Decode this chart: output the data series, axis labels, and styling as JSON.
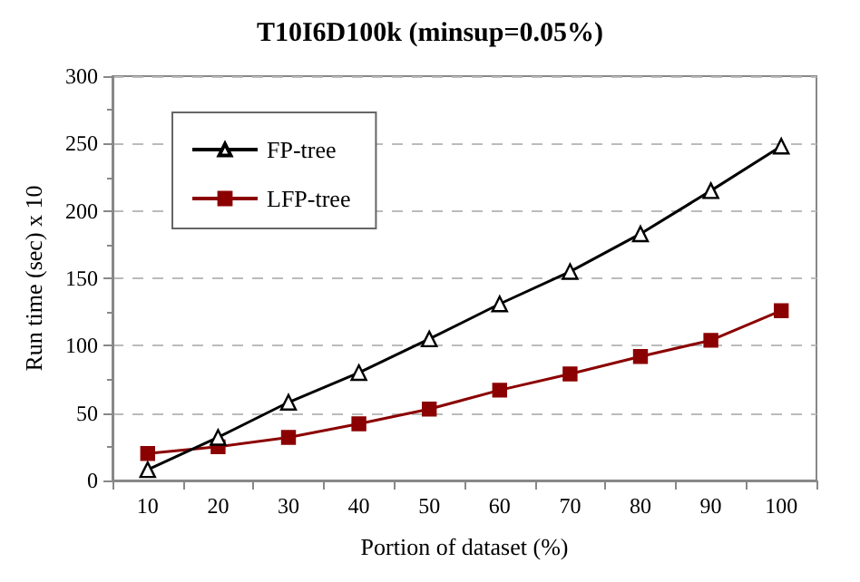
{
  "chart_data": {
    "type": "line",
    "title": "T10I6D100k (minsup=0.05%)",
    "xlabel": "Portion of dataset (%)",
    "ylabel": "Run time (sec) x 10",
    "categories": [
      "10",
      "20",
      "30",
      "40",
      "50",
      "60",
      "70",
      "80",
      "90",
      "100"
    ],
    "series": [
      {
        "name": "FP-tree",
        "color": "#000000",
        "marker": "triangle",
        "values": [
          8,
          32,
          58,
          80,
          105,
          131,
          155,
          183,
          215,
          248
        ]
      },
      {
        "name": "LFP-tree",
        "color": "#8b0000",
        "marker": "square",
        "values": [
          20,
          25,
          32,
          42,
          53,
          67,
          79,
          92,
          104,
          126
        ]
      }
    ],
    "ylim": [
      0,
      300
    ],
    "yticks": [
      0,
      50,
      100,
      150,
      200,
      250,
      300
    ],
    "grid": "y",
    "legend": "top left"
  }
}
